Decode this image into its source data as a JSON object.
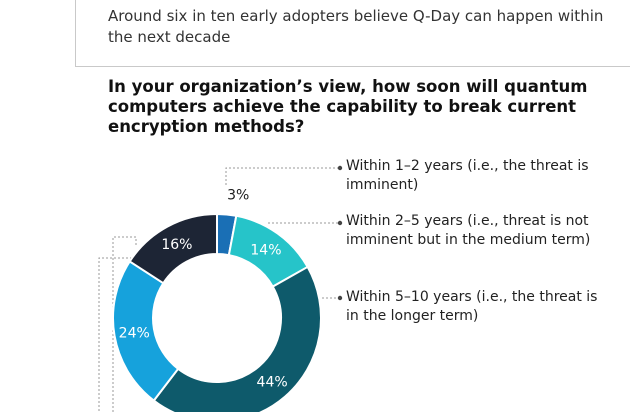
{
  "header": {
    "subtitle": "Around six in ten early adopters believe Q-Day can happen within the next decade"
  },
  "chart_data": {
    "type": "pie",
    "variant": "donut",
    "title": "In your organization’s view, how soon will quantum computers achieve the capability to break current encryption methods?",
    "slices": [
      {
        "label": "Within 1–2 years (i.e., the threat is imminent)",
        "value": 3,
        "display": "3%",
        "color": "#1a6fb5"
      },
      {
        "label": "Within 2–5 years (i.e., threat is not imminent but in the medium term)",
        "value": 14,
        "display": "14%",
        "color": "#26c4c9"
      },
      {
        "label": "Within 5–10 years (i.e., the threat is in the longer term)",
        "value": 44,
        "display": "44%",
        "color": "#0e5a6b"
      },
      {
        "label": "",
        "value": 24,
        "display": "24%",
        "color": "#16a2dc"
      },
      {
        "label": "",
        "value": 16,
        "display": "16%",
        "color": "#1d2535"
      }
    ]
  }
}
